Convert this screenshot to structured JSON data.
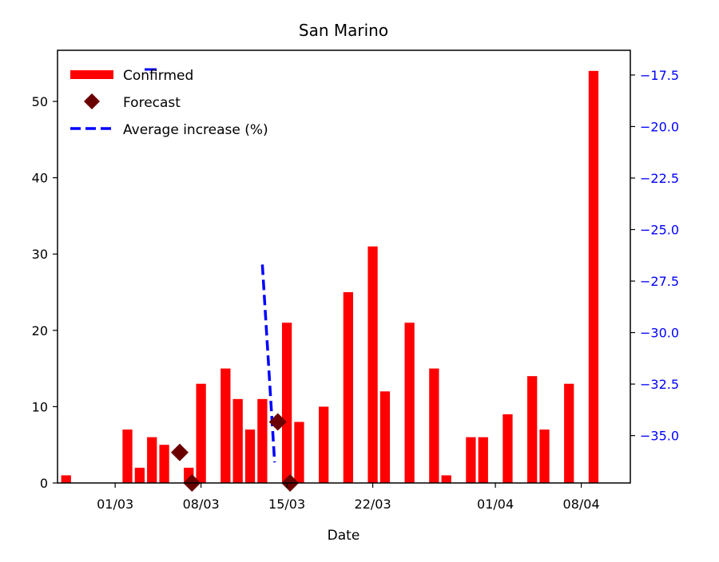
{
  "chart_data": {
    "type": "bar",
    "title": "San Marino",
    "xlabel": "Date",
    "ylabel": "",
    "ylim": [
      0,
      56.7
    ],
    "y2lim": [
      -37.3,
      -16.3
    ],
    "xlim": [
      "2020-02-26",
      "2020-04-12"
    ],
    "grid": false,
    "legend_position": "top-left",
    "x_ticks": [
      "2020-03-01",
      "2020-03-08",
      "2020-03-15",
      "2020-03-22",
      "2020-04-01",
      "2020-04-08"
    ],
    "x_tick_labels": [
      "01/03",
      "08/03",
      "15/03",
      "22/03",
      "01/04",
      "08/04"
    ],
    "y_ticks": [
      0,
      10,
      20,
      30,
      40,
      50
    ],
    "y_tick_labels": [
      "0",
      "10",
      "20",
      "30",
      "40",
      "50"
    ],
    "y2_ticks": [
      -35.0,
      -32.5,
      -30.0,
      -27.5,
      -25.0,
      -22.5,
      -20.0,
      -17.5
    ],
    "y2_tick_labels": [
      "−35.0",
      "−32.5",
      "−30.0",
      "−27.5",
      "−25.0",
      "−22.5",
      "−20.0",
      "−17.5"
    ],
    "legend": [
      "Confirmed",
      "Forecast",
      "Average increase (%)"
    ],
    "colors": {
      "confirmed": "#ff0000",
      "forecast": "#6b0000",
      "average": "#0000ff",
      "axis2": "#0000ff"
    },
    "series": [
      {
        "name": "Confirmed",
        "type": "bar",
        "points": [
          [
            "2020-02-26",
            1
          ],
          [
            "2020-02-27",
            0
          ],
          [
            "2020-02-28",
            0
          ],
          [
            "2020-02-29",
            0
          ],
          [
            "2020-03-01",
            0
          ],
          [
            "2020-03-02",
            7
          ],
          [
            "2020-03-03",
            2
          ],
          [
            "2020-03-04",
            6
          ],
          [
            "2020-03-05",
            5
          ],
          [
            "2020-03-06",
            0
          ],
          [
            "2020-03-07",
            2
          ],
          [
            "2020-03-08",
            13
          ],
          [
            "2020-03-09",
            0
          ],
          [
            "2020-03-10",
            15
          ],
          [
            "2020-03-11",
            11
          ],
          [
            "2020-03-12",
            7
          ],
          [
            "2020-03-13",
            11
          ],
          [
            "2020-03-14",
            0
          ],
          [
            "2020-03-15",
            21
          ],
          [
            "2020-03-16",
            8
          ],
          [
            "2020-03-17",
            0
          ],
          [
            "2020-03-18",
            10
          ],
          [
            "2020-03-19",
            0
          ],
          [
            "2020-03-20",
            25
          ],
          [
            "2020-03-21",
            0
          ],
          [
            "2020-03-22",
            31
          ],
          [
            "2020-03-23",
            12
          ],
          [
            "2020-03-24",
            0
          ],
          [
            "2020-03-25",
            21
          ],
          [
            "2020-03-26",
            0
          ],
          [
            "2020-03-27",
            15
          ],
          [
            "2020-03-28",
            1
          ],
          [
            "2020-03-29",
            0
          ],
          [
            "2020-03-30",
            6
          ],
          [
            "2020-03-31",
            6
          ],
          [
            "2020-04-01",
            0
          ],
          [
            "2020-04-02",
            9
          ],
          [
            "2020-04-03",
            0
          ],
          [
            "2020-04-04",
            14
          ],
          [
            "2020-04-05",
            7
          ],
          [
            "2020-04-06",
            0
          ],
          [
            "2020-04-07",
            13
          ],
          [
            "2020-04-08",
            0
          ],
          [
            "2020-04-09",
            54
          ]
        ]
      },
      {
        "name": "Forecast",
        "type": "scatter",
        "points": [
          [
            "2020-03-06",
            4
          ],
          [
            "2020-03-07",
            0
          ],
          [
            "2020-03-14",
            8
          ],
          [
            "2020-03-15",
            0
          ]
        ]
      },
      {
        "name": "Average increase (%)",
        "type": "line",
        "axis": "right",
        "points": [
          [
            "2020-03-13",
            -26.7
          ],
          [
            "2020-03-14",
            -36.3
          ]
        ]
      }
    ]
  }
}
